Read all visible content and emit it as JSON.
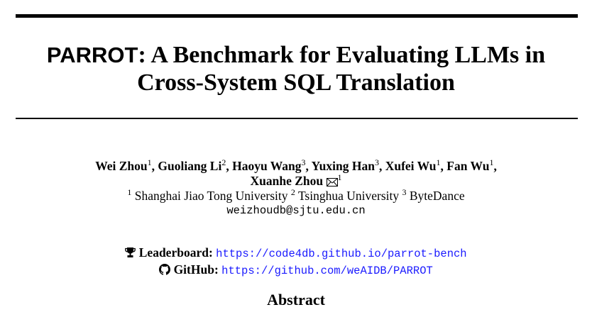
{
  "title": {
    "system_name": "PARROT",
    "line1_rest": ": A Benchmark for Evaluating LLMs in",
    "line2": "Cross-System SQL Translation"
  },
  "authors": [
    {
      "name": "Wei Zhou",
      "affil": "1",
      "sep": ", "
    },
    {
      "name": "Guoliang Li",
      "affil": "2",
      "sep": ", "
    },
    {
      "name": "Haoyu Wang",
      "affil": "3",
      "sep": ", "
    },
    {
      "name": "Yuxing Han",
      "affil": "3",
      "sep": ", "
    },
    {
      "name": "Xufei Wu",
      "affil": "1",
      "sep": ", "
    },
    {
      "name": "Fan Wu",
      "affil": "1",
      "sep": ","
    },
    {
      "name": "Xuanhe Zhou",
      "affil": "1",
      "sep": ""
    }
  ],
  "corresponding_icon": "envelope-icon",
  "affiliations": [
    {
      "num": "1",
      "name": "Shanghai Jiao Tong University"
    },
    {
      "num": "2",
      "name": "Tsinghua University"
    },
    {
      "num": "3",
      "name": "ByteDance"
    }
  ],
  "email": "weizhoudb@sjtu.edu.cn",
  "links": {
    "leaderboard": {
      "icon": "trophy-icon",
      "label": "Leaderboard:",
      "url": "https://code4db.github.io/parrot-bench"
    },
    "github": {
      "icon": "github-icon",
      "label": "GitHub:",
      "url": "https://github.com/weAIDB/PARROT"
    }
  },
  "abstract_heading": "Abstract",
  "colors": {
    "link": "#1a1aff",
    "text": "#000000"
  }
}
